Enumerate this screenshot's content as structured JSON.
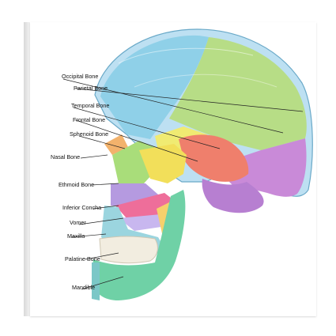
{
  "labels": {
    "occipital": "Occipital Bone",
    "parietal": "Parietal Bone",
    "temporal": "Temporal Bone",
    "frontal": "Frontal Bone",
    "sphenoid": "Sphenoid Bone",
    "nasal": "Nasal Bone",
    "ethmoid": "Ethmoid Bone",
    "concha": "Inferior Concha",
    "vomer": "Vomer",
    "maxilla": "Maxilla",
    "palatine": "Palatine Bone",
    "mandible": "Mandible"
  },
  "colors": {
    "occipital": "#8fd0e8",
    "parietal": "#b7dd86",
    "temporal": "#c98ad8",
    "frontal": "#f0eb72",
    "sphenoid": "#ef7f6c",
    "nasal": "#f2b26c",
    "ethmoid": "#b59ae0",
    "concha": "#ee6e9a",
    "vomer": "#c8b7ef",
    "maxilla": "#8fd8b8",
    "palatine": "#f6d06c",
    "mandible": "#6fd1a6",
    "teeth": "#f2ede0",
    "marrow": "#7bc7c7"
  }
}
